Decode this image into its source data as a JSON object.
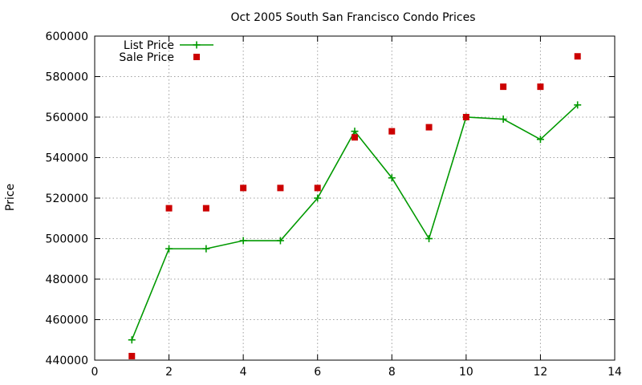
{
  "chart_data": {
    "type": "line",
    "title": "Oct 2005 South San Francisco Condo Prices",
    "xlabel": "",
    "ylabel": "Price",
    "xlim": [
      0,
      14
    ],
    "ylim": [
      440000,
      600000
    ],
    "xticks": [
      0,
      2,
      4,
      6,
      8,
      10,
      12,
      14
    ],
    "yticks": [
      440000,
      460000,
      480000,
      500000,
      520000,
      540000,
      560000,
      580000,
      600000
    ],
    "grid": true,
    "legend_position": "top-left",
    "series": [
      {
        "name": "List Price",
        "style": "line+plus",
        "color": "#009900",
        "x": [
          1,
          2,
          3,
          4,
          5,
          6,
          7,
          8,
          9,
          10,
          11,
          12,
          13
        ],
        "y": [
          450000,
          495000,
          495000,
          499000,
          499000,
          520000,
          553000,
          530000,
          500000,
          560000,
          559000,
          549000,
          566000
        ]
      },
      {
        "name": "Sale Price",
        "style": "square",
        "color": "#cc0000",
        "x": [
          1,
          2,
          3,
          4,
          5,
          6,
          7,
          8,
          9,
          10,
          11,
          12,
          13
        ],
        "y": [
          442000,
          515000,
          515000,
          525000,
          525000,
          525000,
          550000,
          553000,
          555000,
          560000,
          575000,
          575000,
          590000
        ]
      }
    ]
  }
}
